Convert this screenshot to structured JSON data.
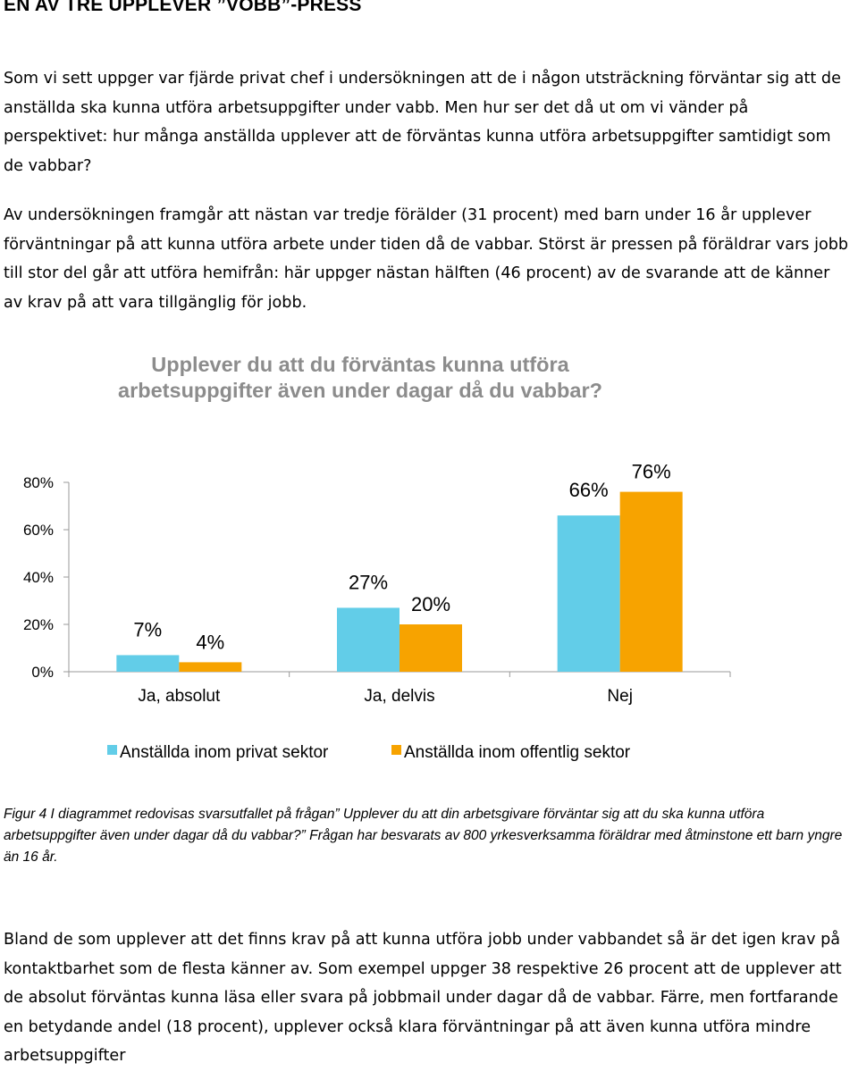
{
  "page": {
    "heading": "EN AV TRE UPPLEVER ”VOBB”-PRESS",
    "paragraph1": "Som vi sett uppger var fjärde privat chef i undersökningen att de i någon utsträckning förväntar sig att de anställda ska kunna utföra arbetsuppgifter under vabb. Men hur ser det då ut om vi vänder på perspektivet: hur många anställda upplever att de förväntas kunna utföra arbetsuppgifter samtidigt som de vabbar?",
    "paragraph2": "Av undersökningen framgår att nästan var tredje förälder (31 procent) med barn under 16 år upplever förväntningar på att kunna utföra arbete under tiden då de vabbar. Störst är pressen på föräldrar vars jobb till stor del går att utföra hemifrån: här uppger nästan hälften (46 procent) av de svarande att de känner av krav på att vara tillgänglig för jobb.",
    "caption": "Figur 4 I diagrammet redovisas svarsutfallet på frågan” Upplever du att din arbetsgivare förväntar sig att du ska kunna utföra arbetsuppgifter även under dagar då du vabbar?” Frågan har besvarats av 800 yrkesverksamma föräldrar med åtminstone ett barn yngre än 16 år.",
    "paragraph3": "Bland de som upplever att det finns krav på att kunna utföra jobb under vabbandet så är det igen krav på kontaktbarhet som de flesta känner av. Som exempel uppger 38 respektive 26 procent att de upplever att de absolut förväntas kunna läsa eller svara på jobbmail under dagar då de vabbar. Färre, men fortfarande en betydande andel (18 procent), upplever också klara förväntningar på att även kunna utföra mindre arbetsuppgifter"
  },
  "chart_data": {
    "type": "bar",
    "title_line1": "Upplever du att du förväntas kunna utföra",
    "title_line2": "arbetsuppgifter även under dagar då du vabbar?",
    "categories": [
      "Ja, absolut",
      "Ja, delvis",
      "Nej"
    ],
    "series": [
      {
        "name": "Anställda inom privat sektor",
        "color": "#62cde8",
        "values": [
          7,
          27,
          66
        ],
        "labels": [
          "7%",
          "27%",
          "66%"
        ]
      },
      {
        "name": "Anställda inom offentlig sektor",
        "color": "#f7a300",
        "values": [
          4,
          20,
          76
        ],
        "labels": [
          "4%",
          "20%",
          "76%"
        ]
      }
    ],
    "y_ticks": [
      "0%",
      "20%",
      "40%",
      "60%",
      "80%"
    ],
    "ylim": [
      0,
      80
    ],
    "grid": false,
    "legend": "bottom"
  }
}
